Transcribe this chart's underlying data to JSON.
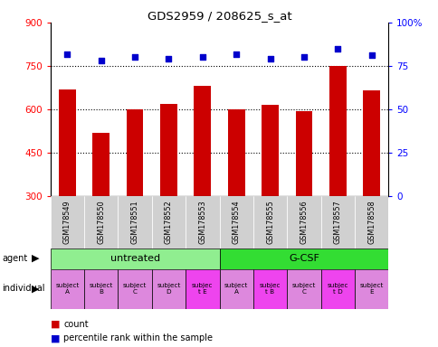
{
  "title": "GDS2959 / 208625_s_at",
  "samples": [
    "GSM178549",
    "GSM178550",
    "GSM178551",
    "GSM178552",
    "GSM178553",
    "GSM178554",
    "GSM178555",
    "GSM178556",
    "GSM178557",
    "GSM178558"
  ],
  "counts": [
    670,
    520,
    600,
    620,
    680,
    600,
    615,
    595,
    750,
    665
  ],
  "percentile_ranks": [
    82,
    78,
    80,
    79,
    80,
    82,
    79,
    80,
    85,
    81
  ],
  "ylim_left": [
    300,
    900
  ],
  "ylim_right": [
    0,
    100
  ],
  "yticks_left": [
    300,
    450,
    600,
    750,
    900
  ],
  "yticks_right": [
    0,
    25,
    50,
    75,
    100
  ],
  "ytick_labels_left": [
    "300",
    "450",
    "600",
    "750",
    "900"
  ],
  "ytick_labels_right": [
    "0",
    "25",
    "50",
    "75",
    "100%"
  ],
  "bar_color": "#cc0000",
  "dot_color": "#0000cc",
  "agent_groups": [
    {
      "label": "untreated",
      "start": 0,
      "end": 5,
      "color": "#90ee90"
    },
    {
      "label": "G-CSF",
      "start": 5,
      "end": 10,
      "color": "#33dd33"
    }
  ],
  "individuals": [
    {
      "label": "subject\nA",
      "idx": 0,
      "color": "#dd88dd"
    },
    {
      "label": "subject\nB",
      "idx": 1,
      "color": "#dd88dd"
    },
    {
      "label": "subject\nC",
      "idx": 2,
      "color": "#dd88dd"
    },
    {
      "label": "subject\nD",
      "idx": 3,
      "color": "#dd88dd"
    },
    {
      "label": "subjec\nt E",
      "idx": 4,
      "color": "#ee44ee"
    },
    {
      "label": "subject\nA",
      "idx": 5,
      "color": "#dd88dd"
    },
    {
      "label": "subjec\nt B",
      "idx": 6,
      "color": "#ee44ee"
    },
    {
      "label": "subject\nC",
      "idx": 7,
      "color": "#dd88dd"
    },
    {
      "label": "subjec\nt D",
      "idx": 8,
      "color": "#ee44ee"
    },
    {
      "label": "subject\nE",
      "idx": 9,
      "color": "#dd88dd"
    }
  ],
  "legend_count_color": "#cc0000",
  "legend_dot_color": "#0000cc",
  "bar_width": 0.5,
  "xtick_bg_color": "#d0d0d0"
}
